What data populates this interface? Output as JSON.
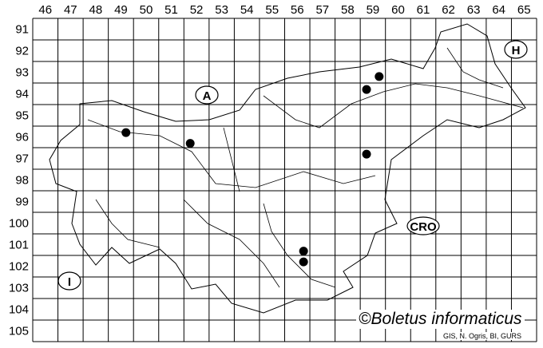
{
  "map": {
    "columns": [
      "46",
      "47",
      "48",
      "49",
      "50",
      "51",
      "52",
      "53",
      "54",
      "55",
      "56",
      "57",
      "58",
      "59",
      "60",
      "61",
      "62",
      "63",
      "64",
      "65"
    ],
    "rows": [
      "91",
      "92",
      "93",
      "94",
      "95",
      "96",
      "97",
      "98",
      "99",
      "100",
      "101",
      "102",
      "103",
      "104",
      "105"
    ],
    "country_labels": [
      {
        "text": "A",
        "cell": [
          "52",
          "94"
        ]
      },
      {
        "text": "H",
        "cell": [
          "65",
          "92"
        ]
      },
      {
        "text": "CRO",
        "cell": [
          "61",
          "100"
        ]
      },
      {
        "text": "I",
        "cell": [
          "47",
          "102"
        ]
      }
    ],
    "records": [
      {
        "col": 49.7,
        "row": 96.3
      },
      {
        "col": 52.25,
        "row": 96.8
      },
      {
        "col": 59.25,
        "row": 94.3
      },
      {
        "col": 59.75,
        "row": 93.7
      },
      {
        "col": 59.25,
        "row": 97.3
      },
      {
        "col": 56.75,
        "row": 101.8
      },
      {
        "col": 56.75,
        "row": 102.3
      }
    ],
    "record_color": "#000000"
  },
  "copyright": "©Boletus informaticus",
  "source": "GIS, N. Ogris, BI, GURS"
}
